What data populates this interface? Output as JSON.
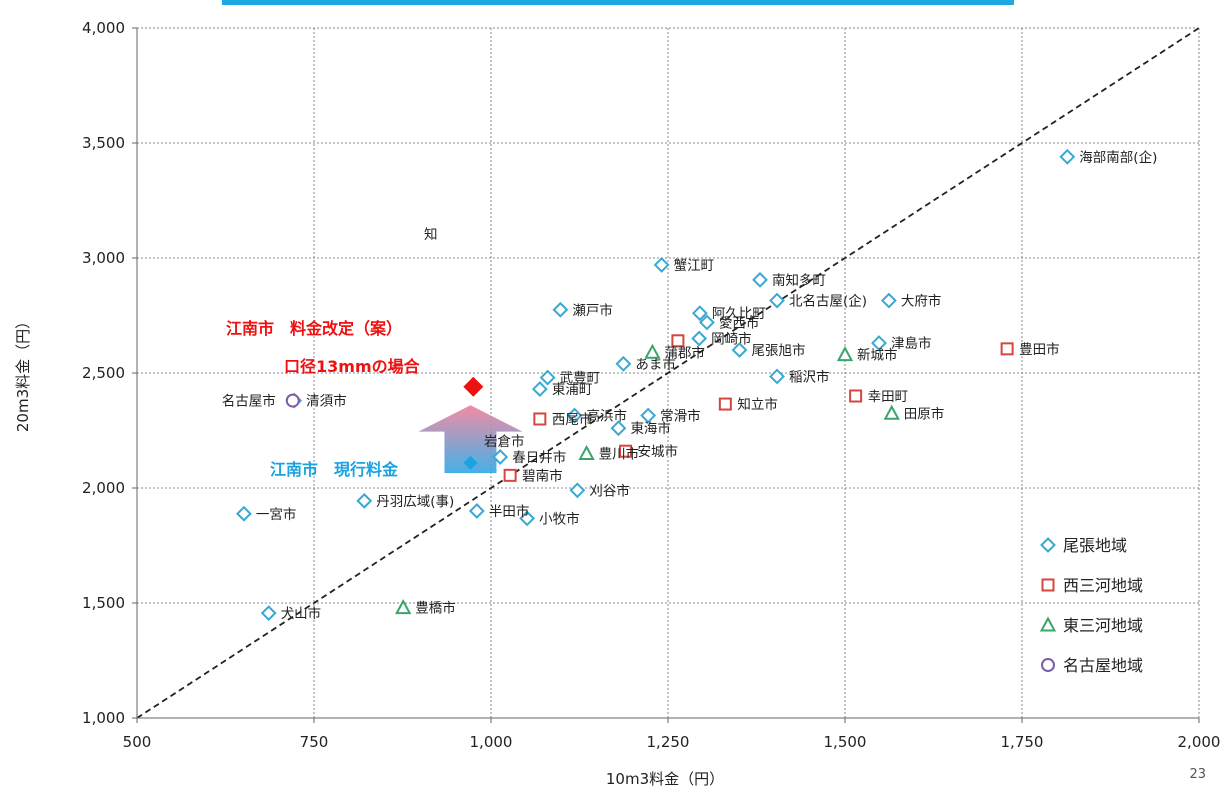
{
  "chart_data": {
    "type": "scatter",
    "xlabel": "10m3料金（円）",
    "ylabel": "20m3料金（円）",
    "xlim": [
      500,
      2000
    ],
    "ylim": [
      1000,
      4000
    ],
    "xticks": [
      500,
      750,
      1000,
      1250,
      1500,
      1750,
      2000
    ],
    "yticks": [
      1000,
      1500,
      2000,
      2500,
      3000,
      3500,
      4000
    ],
    "xtick_labels": [
      "500",
      "750",
      "1,000",
      "1,250",
      "1,500",
      "1,750",
      "2,000"
    ],
    "ytick_labels": [
      "1,000",
      "1,500",
      "2,000",
      "2,500",
      "3,000",
      "3,500",
      "4,000"
    ],
    "grid": true,
    "reference_line": "y = 2x",
    "legend_position": "bottom-right",
    "series": [
      {
        "name": "尾張地域",
        "marker": "diamond",
        "color": "#39a9d2",
        "points": [
          {
            "label": "一宮市",
            "x": 651,
            "y": 1888
          },
          {
            "label": "犬山市",
            "x": 686,
            "y": 1456
          },
          {
            "label": "清須市",
            "x": 722,
            "y": 2380
          },
          {
            "label": "丹羽広域(事)",
            "x": 821,
            "y": 1944
          },
          {
            "label": "半田市",
            "x": 980,
            "y": 1900
          },
          {
            "label": "春日井市",
            "x": 1013,
            "y": 2135
          },
          {
            "label": "小牧市",
            "x": 1051,
            "y": 1868
          },
          {
            "label": "東浦町",
            "x": 1069,
            "y": 2430
          },
          {
            "label": "武豊町",
            "x": 1080,
            "y": 2480
          },
          {
            "label": "瀬戸市",
            "x": 1098,
            "y": 2775
          },
          {
            "label": "高浜市",
            "x": 1118,
            "y": 2315
          },
          {
            "label": "刈谷市",
            "x": 1122,
            "y": 1990
          },
          {
            "label": "東海市",
            "x": 1180,
            "y": 2260
          },
          {
            "label": "あま市",
            "x": 1187,
            "y": 2540
          },
          {
            "label": "常滑市",
            "x": 1222,
            "y": 2315
          },
          {
            "label": "蟹江町",
            "x": 1241,
            "y": 2970
          },
          {
            "label": "阿久比町",
            "x": 1295,
            "y": 2760
          },
          {
            "label": "岡崎市",
            "x": 1294,
            "y": 2650
          },
          {
            "label": "愛西市",
            "x": 1305,
            "y": 2720
          },
          {
            "label": "尾張旭市",
            "x": 1351,
            "y": 2600
          },
          {
            "label": "南知多町",
            "x": 1380,
            "y": 2905
          },
          {
            "label": "北名古屋(企)",
            "x": 1404,
            "y": 2815
          },
          {
            "label": "稲沢市",
            "x": 1404,
            "y": 2485
          },
          {
            "label": "津島市",
            "x": 1548,
            "y": 2630
          },
          {
            "label": "大府市",
            "x": 1562,
            "y": 2815
          },
          {
            "label": "海部南部(企)",
            "x": 1814,
            "y": 3440
          }
        ]
      },
      {
        "name": "西三河地域",
        "marker": "square",
        "color": "#d64541",
        "points": [
          {
            "label": "碧南市",
            "x": 1027,
            "y": 2055
          },
          {
            "label": "西尾市",
            "x": 1069,
            "y": 2300
          },
          {
            "label": "安城市",
            "x": 1190,
            "y": 2160
          },
          {
            "label": "",
            "x": 1264,
            "y": 2640
          },
          {
            "label": "知立市",
            "x": 1331,
            "y": 2365
          },
          {
            "label": "幸田町",
            "x": 1515,
            "y": 2400
          },
          {
            "label": "豊田市",
            "x": 1729,
            "y": 2605
          }
        ]
      },
      {
        "name": "東三河地域",
        "marker": "triangle",
        "color": "#3aa56b",
        "points": [
          {
            "label": "豊橋市",
            "x": 876,
            "y": 1480
          },
          {
            "label": "豊川市",
            "x": 1135,
            "y": 2150
          },
          {
            "label": "蒲郡市",
            "x": 1228,
            "y": 2590
          },
          {
            "label": "新城市",
            "x": 1500,
            "y": 2580
          },
          {
            "label": "田原市",
            "x": 1566,
            "y": 2325
          }
        ]
      },
      {
        "name": "名古屋地域",
        "marker": "circle",
        "color": "#7b5ea7",
        "points": [
          {
            "label": "名古屋市",
            "x": 720,
            "y": 2380
          }
        ]
      }
    ],
    "highlights": [
      {
        "id": "current",
        "x": 971,
        "y": 2110,
        "color": "#1aa3e0",
        "labels": [
          "江南市　現行料金"
        ]
      },
      {
        "id": "proposed",
        "x": 975,
        "y": 2440,
        "color": "#ee1111",
        "labels": [
          "江南市　料金改定（案）",
          "口径13mmの場合"
        ]
      }
    ],
    "occluded_labels": [
      "知",
      "岩倉市"
    ]
  },
  "page_number": "23"
}
